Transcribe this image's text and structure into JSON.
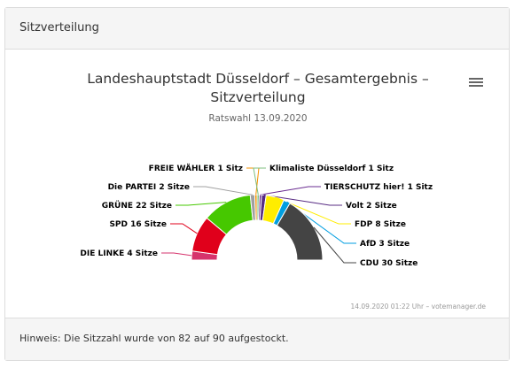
{
  "header": {
    "title": "Sitzverteilung"
  },
  "chart": {
    "title": "Landeshauptstadt Düsseldorf – Gesamtergebnis – Sitzverteilung",
    "subtitle": "Ratswahl 13.09.2020",
    "credits": "14.09.2020 01:22 Uhr – votemanager.de",
    "menu_icon": "hamburger-menu-icon"
  },
  "chart_data": {
    "type": "pie",
    "variant": "semicircle-donut",
    "total": 90,
    "title": "Landeshauptstadt Düsseldorf – Gesamtergebnis – Sitzverteilung",
    "subtitle": "Ratswahl 13.09.2020",
    "series": [
      {
        "name": "DIE LINKE",
        "value": 4,
        "label": "DIE LINKE 4 Sitze",
        "color": "#d6336c"
      },
      {
        "name": "SPD",
        "value": 16,
        "label": "SPD 16 Sitze",
        "color": "#e0001b"
      },
      {
        "name": "GRÜNE",
        "value": 22,
        "label": "GRÜNE 22 Sitze",
        "color": "#46c800"
      },
      {
        "name": "Die PARTEI",
        "value": 2,
        "label": "Die PARTEI 2 Sitze",
        "color": "#a0a0a0"
      },
      {
        "name": "FREIE WÄHLER",
        "value": 1,
        "label": "FREIE WÄHLER 1 Sitz",
        "color": "#f39200"
      },
      {
        "name": "Klimaliste Düsseldorf",
        "value": 1,
        "label": "Klimaliste Düsseldorf 1 Sitz",
        "color": "#7fbf7f"
      },
      {
        "name": "TIERSCHUTZ hier!",
        "value": 1,
        "label": "TIERSCHUTZ hier! 1 Sitz",
        "color": "#6a2c91"
      },
      {
        "name": "Volt",
        "value": 2,
        "label": "Volt 2 Sitze",
        "color": "#582c83"
      },
      {
        "name": "FDP",
        "value": 8,
        "label": "FDP 8 Sitze",
        "color": "#ffed00"
      },
      {
        "name": "AfD",
        "value": 3,
        "label": "AfD 3 Sitze",
        "color": "#009ee0"
      },
      {
        "name": "CDU",
        "value": 30,
        "label": "CDU 30 Sitze",
        "color": "#444444"
      }
    ]
  },
  "footer": {
    "note": "Hinweis: Die Sitzzahl wurde von 82 auf 90 aufgestockt."
  }
}
